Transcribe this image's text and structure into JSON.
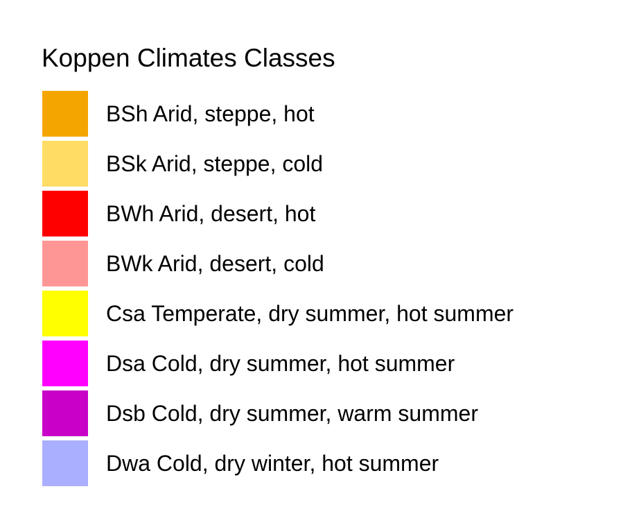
{
  "legend": {
    "title": "Koppen Climates Classes",
    "items": [
      {
        "label": "BSh Arid, steppe, hot",
        "color": "#F5A500"
      },
      {
        "label": "BSk Arid, steppe, cold",
        "color": "#FFDC64"
      },
      {
        "label": "BWh Arid, desert, hot",
        "color": "#FF0000"
      },
      {
        "label": "BWk Arid, desert, cold",
        "color": "#FF9696"
      },
      {
        "label": "Csa Temperate, dry summer, hot summer",
        "color": "#FFFF00"
      },
      {
        "label": "Dsa Cold, dry summer, hot summer",
        "color": "#FF00FF"
      },
      {
        "label": "Dsb Cold, dry summer, warm summer",
        "color": "#C800C8"
      },
      {
        "label": "Dwa Cold, dry winter, hot summer",
        "color": "#AAAFFF"
      }
    ]
  }
}
